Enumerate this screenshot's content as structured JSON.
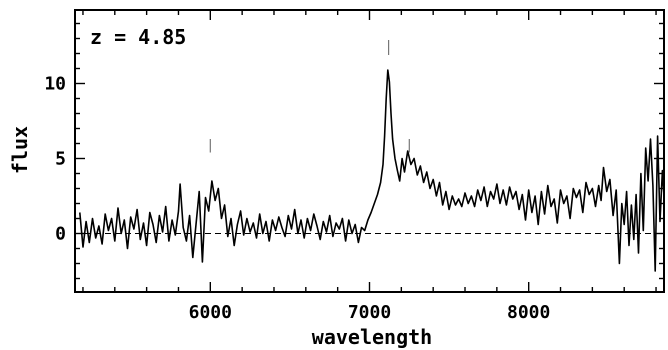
{
  "chart_data": {
    "type": "line",
    "xlabel": "wavelength",
    "ylabel": "flux",
    "annotation": "z = 4.85",
    "xlim": [
      5150,
      8850
    ],
    "ylim": [
      -3.9,
      14.9
    ],
    "xticks": [
      6000,
      7000,
      8000
    ],
    "xtick_labels": [
      "6000",
      "7000",
      "8000"
    ],
    "yticks": [
      0,
      5,
      10
    ],
    "ytick_labels": [
      "0",
      "5",
      "10"
    ],
    "reference_line": {
      "y": 0,
      "style": "dashed"
    },
    "line_markers": [
      {
        "x": 6000,
        "y0": 5.4,
        "y1": 6.3
      },
      {
        "x": 7120,
        "y0": 11.9,
        "y1": 12.9
      },
      {
        "x": 7250,
        "y0": 5.4,
        "y1": 6.3
      }
    ],
    "series": [
      {
        "points": [
          [
            5180,
            1.4
          ],
          [
            5200,
            -0.9
          ],
          [
            5220,
            0.8
          ],
          [
            5240,
            -0.6
          ],
          [
            5260,
            1.0
          ],
          [
            5280,
            -0.3
          ],
          [
            5300,
            0.5
          ],
          [
            5320,
            -0.7
          ],
          [
            5340,
            1.3
          ],
          [
            5360,
            0.2
          ],
          [
            5380,
            1.0
          ],
          [
            5400,
            -0.5
          ],
          [
            5420,
            1.7
          ],
          [
            5440,
            0.0
          ],
          [
            5460,
            0.9
          ],
          [
            5480,
            -1.0
          ],
          [
            5500,
            1.1
          ],
          [
            5520,
            0.3
          ],
          [
            5540,
            1.6
          ],
          [
            5560,
            -0.4
          ],
          [
            5580,
            0.7
          ],
          [
            5600,
            -0.8
          ],
          [
            5620,
            1.4
          ],
          [
            5640,
            0.6
          ],
          [
            5660,
            -0.6
          ],
          [
            5680,
            1.2
          ],
          [
            5700,
            0.1
          ],
          [
            5720,
            1.8
          ],
          [
            5740,
            -0.5
          ],
          [
            5760,
            0.9
          ],
          [
            5780,
            -0.1
          ],
          [
            5800,
            1.5
          ],
          [
            5810,
            3.3
          ],
          [
            5830,
            0.4
          ],
          [
            5850,
            -0.5
          ],
          [
            5870,
            1.2
          ],
          [
            5890,
            -1.6
          ],
          [
            5910,
            0.6
          ],
          [
            5930,
            2.8
          ],
          [
            5950,
            -1.9
          ],
          [
            5970,
            2.4
          ],
          [
            5990,
            1.5
          ],
          [
            6010,
            3.5
          ],
          [
            6030,
            2.2
          ],
          [
            6050,
            3.0
          ],
          [
            6070,
            1.0
          ],
          [
            6090,
            1.9
          ],
          [
            6110,
            -0.2
          ],
          [
            6130,
            1.0
          ],
          [
            6150,
            -0.8
          ],
          [
            6170,
            0.6
          ],
          [
            6190,
            1.5
          ],
          [
            6210,
            -0.1
          ],
          [
            6230,
            1.0
          ],
          [
            6250,
            0.1
          ],
          [
            6270,
            0.7
          ],
          [
            6290,
            -0.3
          ],
          [
            6310,
            1.3
          ],
          [
            6330,
            0.0
          ],
          [
            6350,
            0.8
          ],
          [
            6370,
            -0.5
          ],
          [
            6390,
            0.9
          ],
          [
            6410,
            0.2
          ],
          [
            6430,
            1.1
          ],
          [
            6450,
            0.4
          ],
          [
            6470,
            -0.2
          ],
          [
            6490,
            1.2
          ],
          [
            6510,
            0.3
          ],
          [
            6530,
            1.6
          ],
          [
            6550,
            0.0
          ],
          [
            6570,
            0.9
          ],
          [
            6590,
            -0.3
          ],
          [
            6610,
            1.0
          ],
          [
            6630,
            0.2
          ],
          [
            6650,
            1.3
          ],
          [
            6670,
            0.5
          ],
          [
            6690,
            -0.4
          ],
          [
            6710,
            0.8
          ],
          [
            6730,
            0.1
          ],
          [
            6750,
            1.2
          ],
          [
            6770,
            -0.2
          ],
          [
            6790,
            0.7
          ],
          [
            6810,
            0.3
          ],
          [
            6830,
            1.0
          ],
          [
            6850,
            -0.5
          ],
          [
            6870,
            0.9
          ],
          [
            6890,
            0.0
          ],
          [
            6910,
            0.6
          ],
          [
            6930,
            -0.6
          ],
          [
            6950,
            0.4
          ],
          [
            6970,
            0.2
          ],
          [
            6990,
            0.9
          ],
          [
            7010,
            1.4
          ],
          [
            7030,
            2.0
          ],
          [
            7050,
            2.6
          ],
          [
            7070,
            3.4
          ],
          [
            7085,
            4.6
          ],
          [
            7095,
            6.5
          ],
          [
            7105,
            9.0
          ],
          [
            7115,
            10.9
          ],
          [
            7125,
            10.1
          ],
          [
            7135,
            8.0
          ],
          [
            7145,
            6.3
          ],
          [
            7160,
            5.0
          ],
          [
            7175,
            4.2
          ],
          [
            7190,
            3.5
          ],
          [
            7205,
            5.0
          ],
          [
            7220,
            4.1
          ],
          [
            7240,
            5.5
          ],
          [
            7260,
            4.6
          ],
          [
            7280,
            5.0
          ],
          [
            7300,
            3.9
          ],
          [
            7320,
            4.5
          ],
          [
            7340,
            3.4
          ],
          [
            7360,
            4.1
          ],
          [
            7380,
            3.0
          ],
          [
            7400,
            3.6
          ],
          [
            7420,
            2.5
          ],
          [
            7440,
            3.4
          ],
          [
            7460,
            1.9
          ],
          [
            7480,
            2.8
          ],
          [
            7500,
            1.6
          ],
          [
            7520,
            2.5
          ],
          [
            7540,
            1.9
          ],
          [
            7560,
            2.3
          ],
          [
            7580,
            1.8
          ],
          [
            7600,
            2.7
          ],
          [
            7620,
            2.0
          ],
          [
            7640,
            2.5
          ],
          [
            7660,
            1.8
          ],
          [
            7680,
            2.9
          ],
          [
            7700,
            2.2
          ],
          [
            7720,
            3.1
          ],
          [
            7740,
            1.8
          ],
          [
            7760,
            2.8
          ],
          [
            7780,
            2.3
          ],
          [
            7800,
            3.3
          ],
          [
            7820,
            2.0
          ],
          [
            7840,
            2.9
          ],
          [
            7860,
            1.9
          ],
          [
            7880,
            3.1
          ],
          [
            7900,
            2.3
          ],
          [
            7920,
            2.8
          ],
          [
            7940,
            1.6
          ],
          [
            7960,
            2.6
          ],
          [
            7980,
            0.9
          ],
          [
            8000,
            2.9
          ],
          [
            8020,
            1.4
          ],
          [
            8040,
            2.5
          ],
          [
            8060,
            0.6
          ],
          [
            8080,
            2.8
          ],
          [
            8100,
            1.3
          ],
          [
            8120,
            3.2
          ],
          [
            8140,
            1.8
          ],
          [
            8160,
            2.3
          ],
          [
            8180,
            0.7
          ],
          [
            8200,
            2.9
          ],
          [
            8220,
            2.0
          ],
          [
            8240,
            2.5
          ],
          [
            8260,
            1.0
          ],
          [
            8280,
            3.0
          ],
          [
            8300,
            2.4
          ],
          [
            8320,
            2.9
          ],
          [
            8340,
            1.4
          ],
          [
            8360,
            3.4
          ],
          [
            8380,
            2.6
          ],
          [
            8400,
            3.0
          ],
          [
            8420,
            1.8
          ],
          [
            8440,
            3.2
          ],
          [
            8455,
            2.2
          ],
          [
            8470,
            4.4
          ],
          [
            8490,
            2.8
          ],
          [
            8510,
            3.6
          ],
          [
            8530,
            1.2
          ],
          [
            8550,
            2.9
          ],
          [
            8570,
            -2.0
          ],
          [
            8585,
            2.0
          ],
          [
            8600,
            0.6
          ],
          [
            8615,
            2.8
          ],
          [
            8630,
            -0.8
          ],
          [
            8645,
            1.9
          ],
          [
            8660,
            -0.4
          ],
          [
            8675,
            2.6
          ],
          [
            8690,
            -1.3
          ],
          [
            8705,
            4.0
          ],
          [
            8720,
            0.2
          ],
          [
            8735,
            5.7
          ],
          [
            8750,
            3.5
          ],
          [
            8765,
            6.3
          ],
          [
            8780,
            3.2
          ],
          [
            8795,
            -2.5
          ],
          [
            8810,
            6.5
          ],
          [
            8825,
            0.8
          ],
          [
            8840,
            4.2
          ],
          [
            8850,
            2.5
          ]
        ]
      }
    ]
  }
}
